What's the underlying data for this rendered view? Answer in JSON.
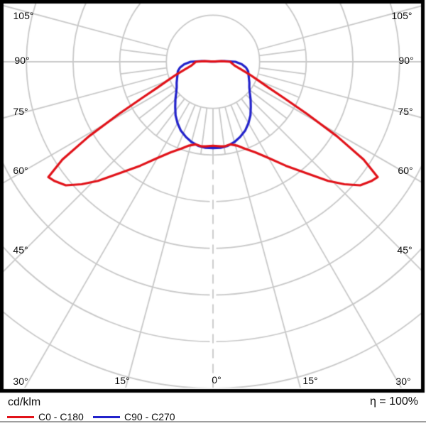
{
  "legend": {
    "unit": "cd/klm",
    "efficiency": "η = 100%"
  },
  "axis": {
    "angle_labels": [
      "105°",
      "90°",
      "75°",
      "60°",
      "45°",
      "30°",
      "15°",
      "0°",
      "15°",
      "30°",
      "45°",
      "60°",
      "75°",
      "90°",
      "105°"
    ]
  },
  "chart_data": {
    "type": "line",
    "subtype": "polar-photometric",
    "title": "",
    "radial_unit": "cd/klm",
    "efficiency": "η = 100%",
    "radial_scale_note": "grid rings unlabeled; r values in ring units, 7 rings visible",
    "grid": {
      "ring_count": 7,
      "spoke_step_deg": 15,
      "fine_spoke_step_deg": 7.5,
      "max_angle_deg": 105,
      "grid_color": "#c9c9c9",
      "border_color": "#000000"
    },
    "series": [
      {
        "name": "C0 - C180",
        "color": "#e11219",
        "symmetric": true,
        "gamma_deg": [
          0,
          5,
          8,
          12,
          16,
          20,
          25,
          30,
          35,
          40,
          44,
          47,
          50,
          53,
          55,
          57,
          59,
          61,
          63,
          65,
          68,
          71,
          75,
          80,
          85,
          90,
          94,
          97
        ],
        "r_rings": [
          1.8,
          1.82,
          1.83,
          1.81,
          1.87,
          1.98,
          2.14,
          2.38,
          2.72,
          3.12,
          3.55,
          3.85,
          4.12,
          4.25,
          4.31,
          3.85,
          3.1,
          2.3,
          1.7,
          1.32,
          1.02,
          0.82,
          0.62,
          0.47,
          0.41,
          0.37,
          0.18,
          0.04
        ]
      },
      {
        "name": "C90 - C270",
        "color": "#2222cb",
        "symmetric": true,
        "gamma_deg": [
          0,
          5,
          10,
          15,
          20,
          25,
          30,
          35,
          40,
          45,
          50,
          55,
          60,
          65,
          70,
          75,
          80,
          85,
          90,
          93,
          96
        ],
        "r_rings": [
          1.85,
          1.85,
          1.83,
          1.78,
          1.71,
          1.63,
          1.52,
          1.4,
          1.26,
          1.14,
          1.03,
          0.95,
          0.9,
          0.85,
          0.81,
          0.78,
          0.72,
          0.62,
          0.48,
          0.25,
          0.05
        ]
      }
    ]
  }
}
